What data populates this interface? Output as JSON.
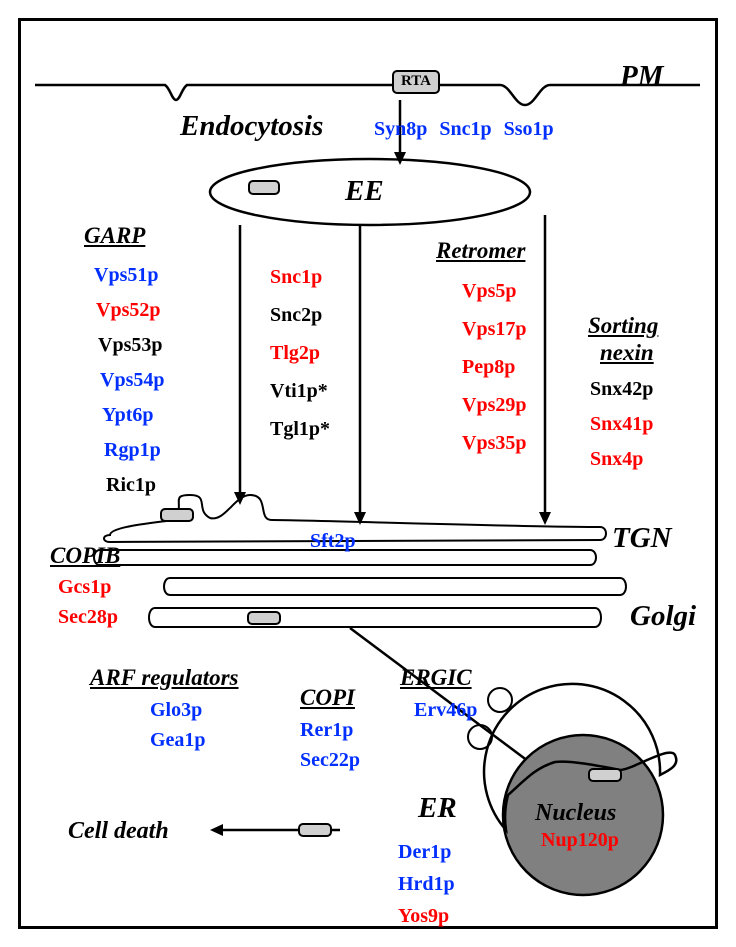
{
  "colors": {
    "blue": "#002fff",
    "red": "#ff0000",
    "black": "#000000",
    "nucleus_fill": "#808080",
    "rta_fill": "#d0d0d0"
  },
  "labels": {
    "PM": "PM",
    "RTA": "RTA",
    "Endocytosis": "Endocytosis",
    "EE": "EE",
    "TGN": "TGN",
    "Golgi": "Golgi",
    "ER": "ER",
    "Nucleus": "Nucleus",
    "CellDeath": "Cell death",
    "GARP": "GARP",
    "Retromer": "Retromer",
    "SortingNexin": "Sorting",
    "SortingNexin2": "nexin",
    "COPIB": "COPIB",
    "ARFreg": "ARF regulators",
    "COPI": "COPI",
    "ERGIC": "ERGIC"
  },
  "proteins_PM": [
    {
      "t": "Syn8p",
      "c": "blue"
    },
    {
      "t": "Snc1p",
      "c": "blue"
    },
    {
      "t": "Sso1p",
      "c": "blue"
    }
  ],
  "proteins_GARP": [
    {
      "t": "Vps51p",
      "c": "blue"
    },
    {
      "t": "Vps52p",
      "c": "red"
    },
    {
      "t": "Vps53p",
      "c": "black"
    },
    {
      "t": "Vps54p",
      "c": "blue"
    },
    {
      "t": "Ypt6p",
      "c": "blue"
    },
    {
      "t": "Rgp1p",
      "c": "blue"
    },
    {
      "t": "Ric1p",
      "c": "black"
    }
  ],
  "proteins_center": [
    {
      "t": "Snc1p",
      "c": "red"
    },
    {
      "t": "Snc2p",
      "c": "black"
    },
    {
      "t": "Tlg2p",
      "c": "red"
    },
    {
      "t": "Vti1p*",
      "c": "black"
    },
    {
      "t": "Tgl1p*",
      "c": "black"
    }
  ],
  "proteins_Retromer": [
    {
      "t": "Vps5p",
      "c": "red"
    },
    {
      "t": "Vps17p",
      "c": "red"
    },
    {
      "t": "Pep8p",
      "c": "red"
    },
    {
      "t": "Vps29p",
      "c": "red"
    },
    {
      "t": "Vps35p",
      "c": "red"
    }
  ],
  "proteins_Sorting": [
    {
      "t": "Snx42p",
      "c": "black"
    },
    {
      "t": "Snx41p",
      "c": "red"
    },
    {
      "t": "Snx4p",
      "c": "red"
    }
  ],
  "protein_Sft2p": {
    "t": "Sft2p",
    "c": "blue"
  },
  "proteins_COPIB": [
    {
      "t": "Gcs1p",
      "c": "red"
    },
    {
      "t": "Sec28p",
      "c": "red"
    }
  ],
  "proteins_ARF": [
    {
      "t": "Glo3p",
      "c": "blue"
    },
    {
      "t": "Gea1p",
      "c": "blue"
    }
  ],
  "proteins_COPI": [
    {
      "t": "Rer1p",
      "c": "blue"
    },
    {
      "t": "Sec22p",
      "c": "blue"
    }
  ],
  "proteins_ERGIC": [
    {
      "t": "Erv46p",
      "c": "blue"
    }
  ],
  "proteins_ER": [
    {
      "t": "Der1p",
      "c": "blue"
    },
    {
      "t": "Hrd1p",
      "c": "blue"
    },
    {
      "t": "Yos9p",
      "c": "red"
    }
  ],
  "protein_Nucleus": {
    "t": "Nup120p",
    "c": "red"
  },
  "font": {
    "body_size": 20,
    "big_bold_size": 26,
    "heading_size": 22
  }
}
